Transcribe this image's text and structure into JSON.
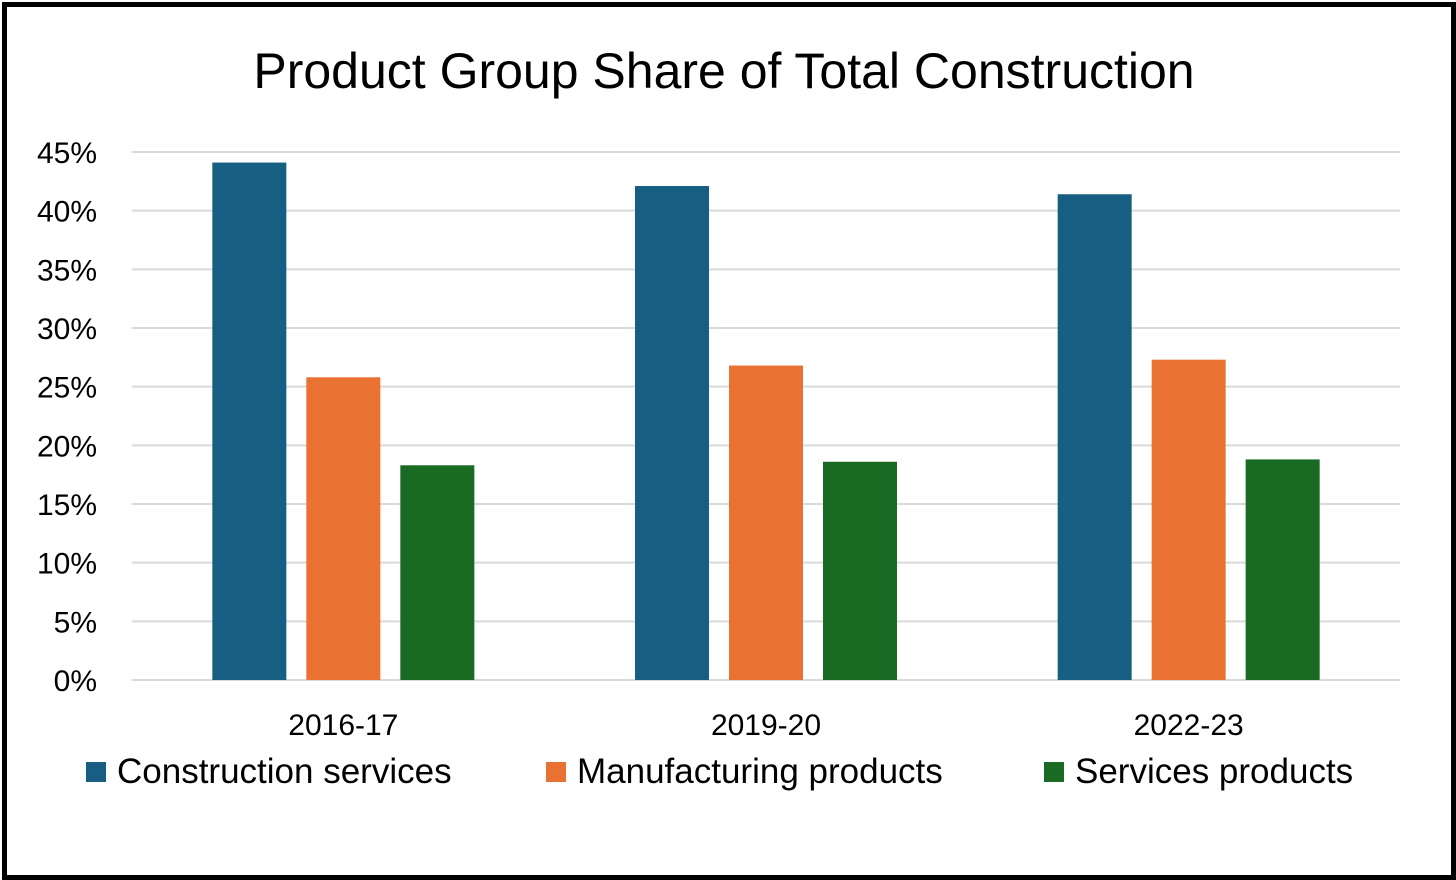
{
  "chart_data": {
    "type": "bar",
    "title": "Product Group Share of Total Construction",
    "xlabel": "",
    "ylabel": "",
    "categories": [
      "2016-17",
      "2019-20",
      "2022-23"
    ],
    "series": [
      {
        "name": "Construction services",
        "color": "#175f82",
        "values": [
          44.1,
          42.1,
          41.4
        ]
      },
      {
        "name": "Manufacturing products",
        "color": "#e97132",
        "values": [
          25.8,
          26.8,
          27.3
        ]
      },
      {
        "name": "Services products",
        "color": "#196b24",
        "values": [
          18.3,
          18.6,
          18.8
        ]
      }
    ],
    "ylim": [
      0,
      45
    ],
    "yticks": [
      0,
      5,
      10,
      15,
      20,
      25,
      30,
      35,
      40,
      45
    ],
    "ytick_labels": [
      "0%",
      "5%",
      "10%",
      "15%",
      "20%",
      "25%",
      "30%",
      "35%",
      "40%",
      "45%"
    ],
    "grid": true,
    "legend_position": "bottom"
  }
}
